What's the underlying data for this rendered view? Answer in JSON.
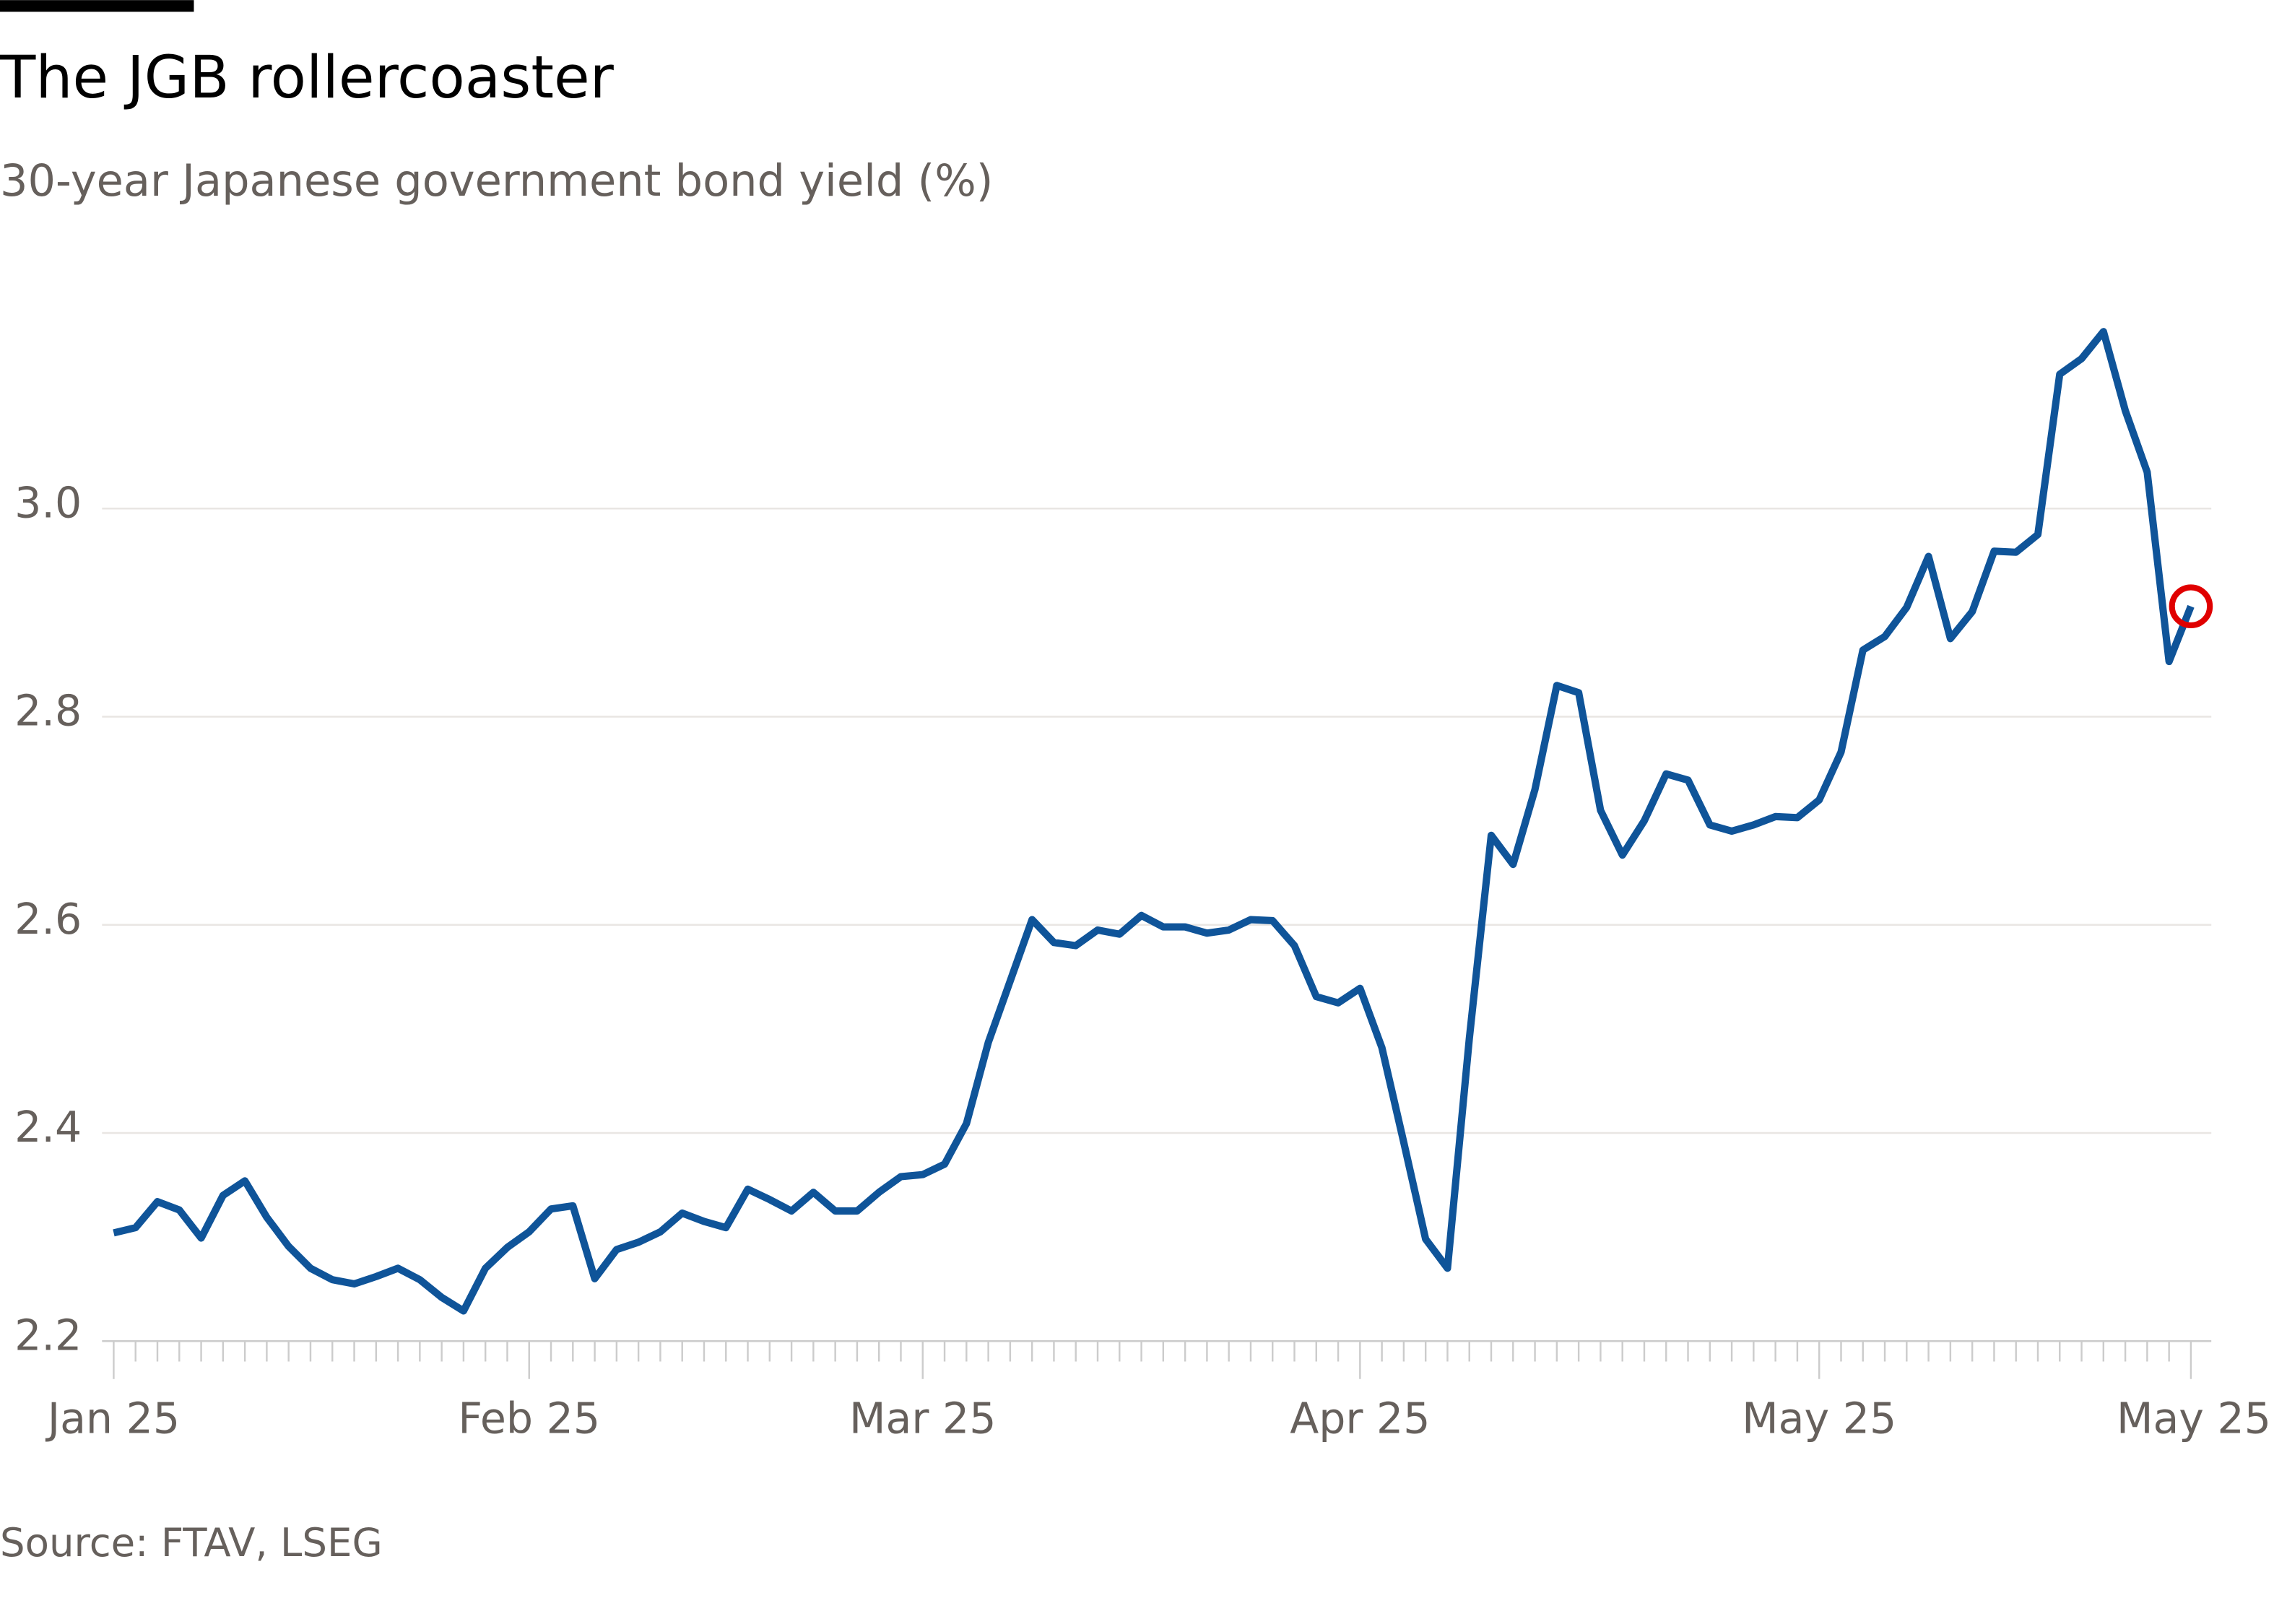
{
  "chart_data": {
    "type": "line",
    "title": "The JGB rollercoaster",
    "subtitle": "30-year Japanese government bond yield (%)",
    "source": "Source: FTAV, LSEG",
    "categories": [
      "Jan 25",
      null,
      null,
      null,
      null,
      null,
      null,
      null,
      null,
      null,
      null,
      null,
      null,
      null,
      null,
      null,
      null,
      null,
      null,
      "Feb 25",
      null,
      null,
      null,
      null,
      null,
      null,
      null,
      null,
      null,
      null,
      null,
      null,
      null,
      null,
      null,
      null,
      null,
      "Mar 25",
      null,
      null,
      null,
      null,
      null,
      null,
      null,
      null,
      null,
      null,
      null,
      null,
      null,
      null,
      null,
      null,
      null,
      null,
      null,
      "Apr 25",
      null,
      null,
      null,
      null,
      null,
      null,
      null,
      null,
      null,
      null,
      null,
      null,
      null,
      null,
      null,
      null,
      null,
      null,
      null,
      null,
      "May 25",
      null,
      null,
      null,
      null,
      null,
      null,
      null,
      null,
      null,
      null,
      null,
      null,
      null,
      null,
      null,
      null,
      "May 25"
    ],
    "series": [
      {
        "name": "30-year JGB yield",
        "color": "#0f5499",
        "values": [
          2.304,
          2.309,
          2.334,
          2.326,
          2.299,
          2.34,
          2.354,
          2.319,
          2.291,
          2.27,
          2.259,
          2.255,
          2.262,
          2.27,
          2.259,
          2.242,
          2.229,
          2.27,
          2.29,
          2.305,
          2.327,
          2.33,
          2.26,
          2.288,
          2.295,
          2.305,
          2.323,
          2.315,
          2.309,
          2.346,
          2.336,
          2.325,
          2.343,
          2.325,
          2.325,
          2.343,
          2.358,
          2.36,
          2.37,
          2.409,
          2.487,
          2.546,
          2.605,
          2.583,
          2.58,
          2.595,
          2.591,
          2.609,
          2.598,
          2.598,
          2.592,
          2.595,
          2.605,
          2.604,
          2.58,
          2.531,
          2.525,
          2.539,
          2.482,
          2.391,
          2.298,
          2.27,
          2.491,
          2.686,
          2.658,
          2.73,
          2.83,
          2.823,
          2.71,
          2.667,
          2.7,
          2.745,
          2.739,
          2.696,
          2.69,
          2.696,
          2.704,
          2.703,
          2.72,
          2.766,
          2.864,
          2.877,
          2.905,
          2.954,
          2.875,
          2.901,
          2.959,
          2.958,
          2.975,
          3.129,
          3.144,
          3.17,
          3.094,
          3.035,
          2.853,
          2.906
        ]
      }
    ],
    "highlight_last": true,
    "highlight_color": "#e00000",
    "ylim": [
      2.2,
      3.2
    ],
    "yticks": [
      2.2,
      2.4,
      2.6,
      2.8,
      {
        "value": 3.0,
        "label": "3.0"
      }
    ],
    "grid": true
  }
}
